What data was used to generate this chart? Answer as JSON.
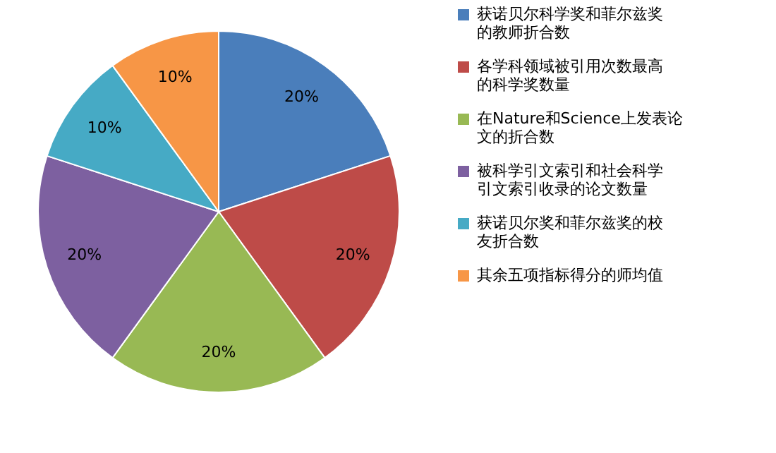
{
  "chart_data": {
    "type": "pie",
    "categories": [
      "获诺贝尔科学奖和菲尔兹奖的教师折合数",
      "各学科领域被引用次数最高的科学奖数量",
      "在Nature和Science上发表论文的折合数",
      "被科学引文索引和社会科学引文索引收录的论文数量",
      "获诺贝尔奖和菲尔兹奖的校友折合数",
      "其余五项指标得分的师均值"
    ],
    "values": [
      20,
      20,
      20,
      20,
      10,
      10
    ],
    "value_labels": [
      "20%",
      "20%",
      "20%",
      "20%",
      "10%",
      "10%"
    ],
    "colors": [
      "#4a7ebb",
      "#be4b48",
      "#98b954",
      "#7d60a0",
      "#46aac5",
      "#f79646"
    ],
    "legend": "right"
  }
}
